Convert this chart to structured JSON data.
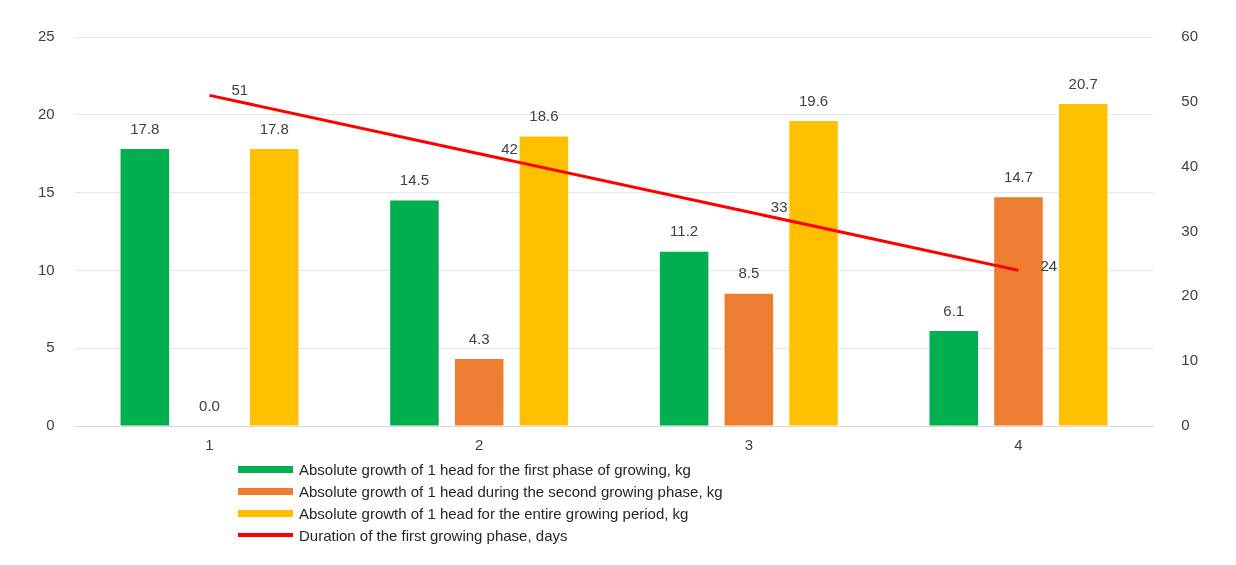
{
  "chart_data": {
    "type": "bar",
    "categories": [
      "1",
      "2",
      "3",
      "4"
    ],
    "series": [
      {
        "name": "Absolute growth of 1 head for the first phase of growing, kg",
        "color": "#00b050",
        "values": [
          17.8,
          14.5,
          11.2,
          6.1
        ],
        "value_labels": [
          "17.8",
          "14.5",
          "11.2",
          "6.1"
        ]
      },
      {
        "name": "Absolute growth of 1 head during the second growing phase, kg",
        "color": "#ed7d31",
        "values": [
          0.0,
          4.3,
          8.5,
          14.7
        ],
        "value_labels": [
          "0.0",
          "4.3",
          "8.5",
          "14.7"
        ]
      },
      {
        "name": "Absolute growth of 1 head for the entire growing period, kg",
        "color": "#ffc000",
        "values": [
          17.8,
          18.6,
          19.6,
          20.7
        ],
        "value_labels": [
          "17.8",
          "18.6",
          "19.6",
          "20.7"
        ]
      },
      {
        "name": "Duration of the first growing phase, days",
        "color": "#ff0000",
        "type": "line",
        "axis": "y2",
        "values": [
          51,
          42,
          33,
          24
        ],
        "value_labels": [
          "51",
          "42",
          "33",
          "24"
        ]
      }
    ],
    "ylim": [
      0,
      25
    ],
    "yticks": [
      0,
      5,
      10,
      15,
      20,
      25
    ],
    "y2lim": [
      0,
      60
    ],
    "y2ticks": [
      0,
      10,
      20,
      30,
      40,
      50,
      60
    ],
    "grid": "y",
    "legend": "bottom",
    "marker": "none",
    "line_style": "solid"
  }
}
